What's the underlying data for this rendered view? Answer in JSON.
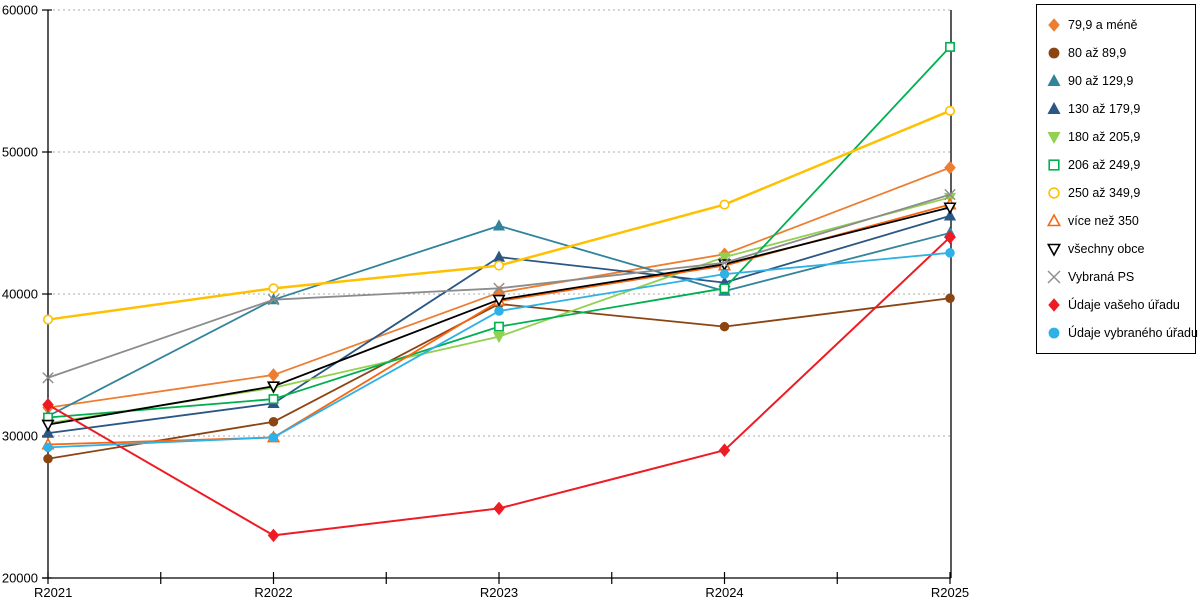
{
  "chart_data": {
    "type": "line",
    "x": [
      "R2021",
      "R2022",
      "R2023",
      "R2024",
      "R2025"
    ],
    "ylim": [
      20000,
      60000
    ],
    "y_ticks": [
      20000,
      30000,
      40000,
      50000,
      60000
    ],
    "grid": "horizontal-dashed",
    "legend_position": "right",
    "series": [
      {
        "name": "79,9 a méně",
        "color": "#ED7D31",
        "marker": "diamond",
        "fill": "solid",
        "width": 1.8,
        "values": [
          32000,
          34300,
          40100,
          42800,
          48900
        ]
      },
      {
        "name": "80 až 89,9",
        "color": "#8B4513",
        "marker": "circle",
        "fill": "solid",
        "width": 1.8,
        "values": [
          28400,
          31000,
          39300,
          37700,
          39700
        ]
      },
      {
        "name": "90 až 129,9",
        "color": "#31849B",
        "marker": "triangle-up",
        "fill": "solid",
        "width": 1.8,
        "values": [
          31400,
          39600,
          44800,
          40200,
          44300
        ]
      },
      {
        "name": "130 až 179,9",
        "color": "#2A5783",
        "marker": "triangle-up",
        "fill": "solid",
        "width": 1.8,
        "values": [
          30200,
          32300,
          42600,
          40800,
          45500
        ]
      },
      {
        "name": "180 až 205,9",
        "color": "#92D050",
        "marker": "triangle-down",
        "fill": "solid",
        "width": 1.8,
        "values": [
          30900,
          33400,
          37000,
          42600,
          46800
        ]
      },
      {
        "name": "206 až 249,9",
        "color": "#00B050",
        "marker": "square",
        "fill": "open",
        "width": 1.8,
        "values": [
          31300,
          32600,
          37700,
          40400,
          57400
        ]
      },
      {
        "name": "250 až 349,9",
        "color": "#FFC000",
        "marker": "circle",
        "fill": "open",
        "width": 2.5,
        "values": [
          38200,
          40400,
          42000,
          46300,
          52900
        ]
      },
      {
        "name": "více než 350",
        "color": "#F96611",
        "marker": "triangle-up",
        "fill": "open",
        "width": 1.8,
        "values": [
          29400,
          29900,
          39500,
          42000,
          46300
        ]
      },
      {
        "name": "všechny obce",
        "color": "#000000",
        "marker": "triangle-down",
        "fill": "open",
        "width": 1.8,
        "values": [
          30800,
          33500,
          39600,
          42100,
          46100
        ]
      },
      {
        "name": "Vybraná PS",
        "color": "#8C8C8C",
        "marker": "x",
        "fill": "open",
        "width": 1.8,
        "values": [
          34100,
          39600,
          40400,
          42200,
          47000
        ]
      },
      {
        "name": "Údaje vašeho úřadu",
        "color": "#ED1C24",
        "marker": "diamond",
        "fill": "solid",
        "width": 2.0,
        "values": [
          32200,
          23000,
          24900,
          29000,
          44000
        ]
      },
      {
        "name": "Údaje vybraného úřadu",
        "color": "#2EB1E6",
        "marker": "circle",
        "fill": "solid",
        "width": 1.8,
        "values": [
          29200,
          29900,
          38800,
          41400,
          42900
        ]
      }
    ]
  },
  "colors": {
    "grid": "#ABABAB",
    "axis": "#000000",
    "background": "#FFFFFF"
  }
}
